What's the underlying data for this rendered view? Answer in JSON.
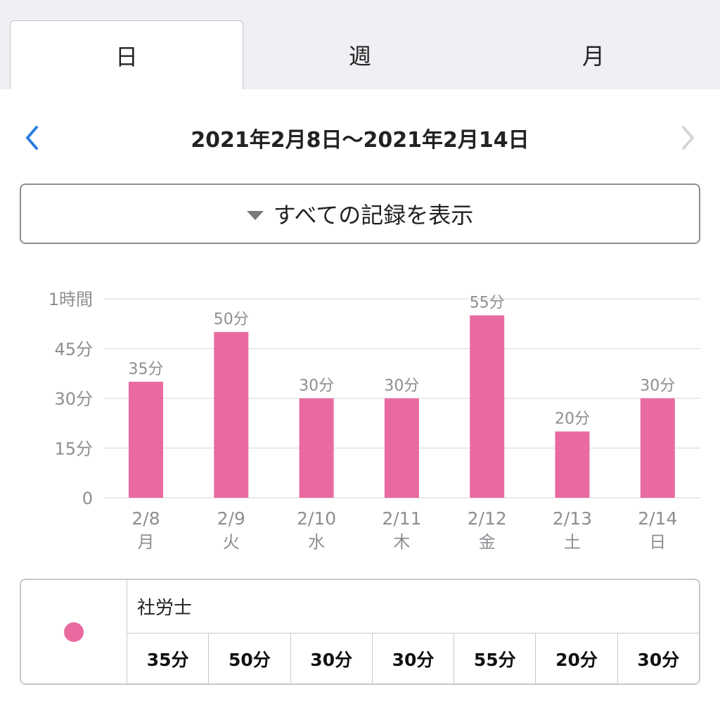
{
  "tabs": [
    {
      "label": "日",
      "active": true
    },
    {
      "label": "週",
      "active": false
    },
    {
      "label": "月",
      "active": false
    }
  ],
  "date_nav": {
    "range": "2021年2月8日〜2021年2月14日",
    "prev_icon": "chevron-left-icon",
    "next_icon": "chevron-right-icon",
    "prev_color": "#2a7ae2",
    "next_color": "#d6d6d6"
  },
  "filter": {
    "label": "すべての記録を表示"
  },
  "colors": {
    "bar": "#e96aa1",
    "grid": "#e3e3e6",
    "axis_text": "#8e8e93"
  },
  "chart_data": {
    "type": "bar",
    "categories": [
      "2/8",
      "2/9",
      "2/10",
      "2/11",
      "2/12",
      "2/13",
      "2/14"
    ],
    "weekdays": [
      "月",
      "火",
      "水",
      "木",
      "金",
      "土",
      "日"
    ],
    "values": [
      35,
      50,
      30,
      30,
      55,
      20,
      30
    ],
    "value_labels": [
      "35分",
      "50分",
      "30分",
      "30分",
      "55分",
      "20分",
      "30分"
    ],
    "y_ticks": [
      0,
      15,
      30,
      45,
      60
    ],
    "y_tick_labels": [
      "0",
      "15分",
      "30分",
      "45分",
      "1時間"
    ],
    "ylim": [
      0,
      60
    ],
    "grid": true
  },
  "legend": {
    "name": "社労士",
    "values": [
      "35分",
      "50分",
      "30分",
      "30分",
      "55分",
      "20分",
      "30分"
    ]
  }
}
